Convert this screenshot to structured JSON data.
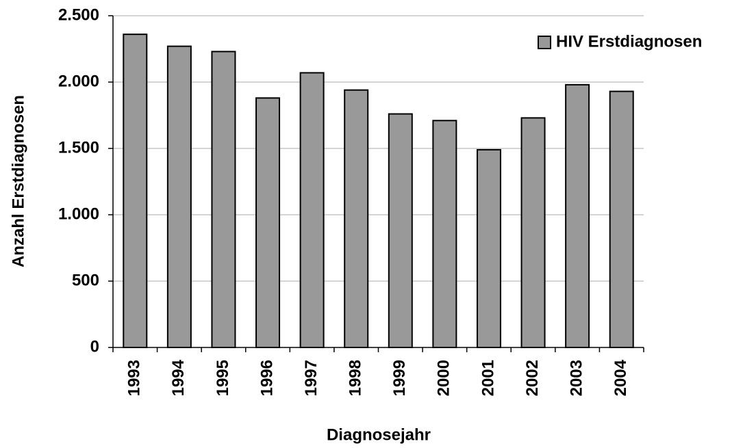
{
  "chart_data": {
    "type": "bar",
    "x_label": "Diagnosejahr",
    "y_label": "Anzahl Erstdiagnosen",
    "categories": [
      "1993",
      "1994",
      "1995",
      "1996",
      "1997",
      "1998",
      "1999",
      "2000",
      "2001",
      "2002",
      "2003",
      "2004"
    ],
    "series": [
      {
        "name": "HIV Erstdiagnosen",
        "color": "#999999",
        "values": [
          2360,
          2270,
          2230,
          1880,
          2070,
          1940,
          1760,
          1710,
          1490,
          1730,
          1980,
          1930
        ]
      }
    ],
    "ylim": [
      0,
      2500
    ],
    "yticks": [
      0,
      500,
      {
        "value": 1000,
        "label": "1.000"
      },
      {
        "value": 1500,
        "label": "1.500"
      },
      {
        "value": 2000,
        "label": "2.000"
      },
      {
        "value": 2500,
        "label": "2.500"
      }
    ],
    "grid": true,
    "legend": "upper right"
  }
}
